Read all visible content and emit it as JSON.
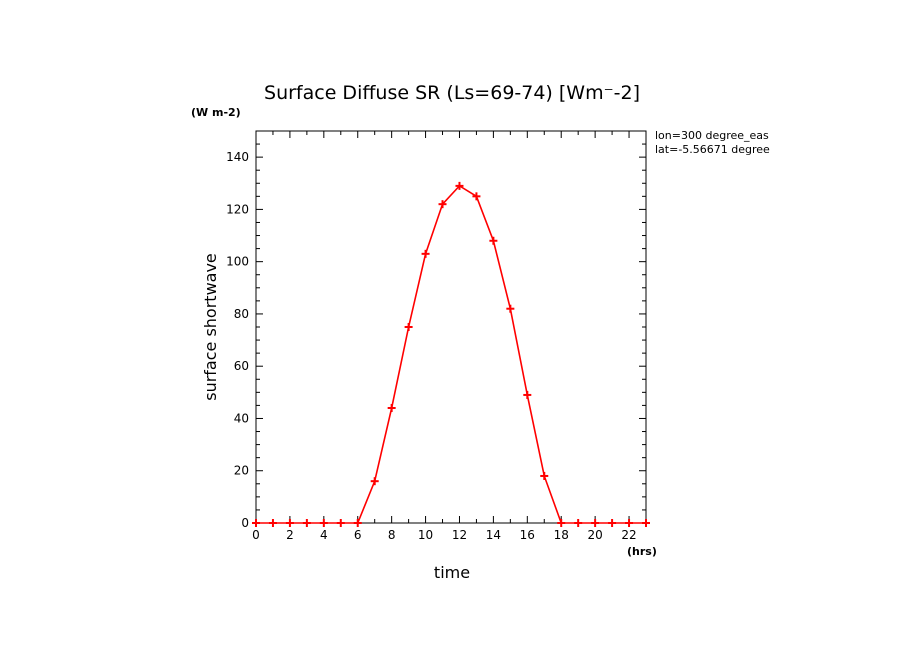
{
  "chart_data": {
    "type": "line",
    "title": "Surface Diffuse SR (Ls=69-74) [Wm⁻-2]",
    "y_units": "(W m-2)",
    "x_units": "(hrs)",
    "xlabel": "time",
    "ylabel": "surface shortwave",
    "annotations": [
      "lon=300 degree_eas",
      "lat=-5.56671 degree"
    ],
    "xlim": [
      0,
      23
    ],
    "ylim": [
      0,
      150
    ],
    "x_ticks": [
      0,
      2,
      4,
      6,
      8,
      10,
      12,
      14,
      16,
      18,
      20,
      22
    ],
    "x_tick_labels": [
      "0",
      "2",
      "4",
      "6",
      "8",
      "10",
      "12",
      "14",
      "16",
      "18",
      "20",
      "22"
    ],
    "y_ticks": [
      0,
      20,
      40,
      60,
      80,
      100,
      120,
      140
    ],
    "y_tick_labels": [
      "0",
      "20",
      "40",
      "60",
      "80",
      "100",
      "120",
      "140"
    ],
    "grid": false,
    "series_color": "#ff0000",
    "series": [
      {
        "x": [
          0,
          1,
          2,
          3,
          4,
          5,
          6,
          7,
          8,
          9,
          10,
          11,
          12,
          13,
          14,
          15,
          16,
          17,
          18,
          19,
          20,
          21,
          22,
          23
        ],
        "values": [
          0,
          0,
          0,
          0,
          0,
          0,
          0,
          16,
          44,
          75,
          103,
          122,
          129,
          125,
          108,
          82,
          49,
          18,
          0,
          0,
          0,
          0,
          0,
          0
        ]
      }
    ]
  }
}
